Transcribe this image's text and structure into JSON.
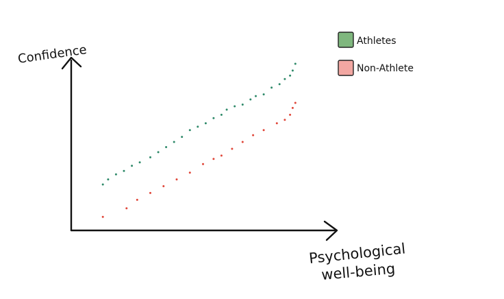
{
  "chart_data": {
    "type": "scatter",
    "title": "",
    "xlabel": [
      "Psychological",
      "well-being"
    ],
    "ylabel": "Confidence",
    "grid": false,
    "legend_position": "top-right",
    "axis_ticks": "none",
    "xlim": [
      0,
      100
    ],
    "ylim": [
      0,
      100
    ],
    "series": [
      {
        "name": "Athletes",
        "color": "#7fb77e",
        "x": [
          12,
          14,
          17,
          20,
          23,
          26,
          30,
          33,
          36,
          39,
          42,
          45,
          48,
          51,
          54,
          57,
          59,
          62,
          65,
          68,
          70,
          73,
          76,
          79,
          81,
          83,
          84,
          85
        ],
        "y": [
          27,
          30,
          33,
          35,
          38,
          40,
          43,
          46,
          49,
          52,
          55,
          59,
          61,
          63,
          66,
          68,
          71,
          73,
          74,
          77,
          79,
          80,
          84,
          86,
          89,
          91,
          94,
          98
        ]
      },
      {
        "name": "Non-Athlete",
        "color": "#f2a7a2",
        "x": [
          12,
          21,
          25,
          30,
          35,
          40,
          45,
          50,
          54,
          57,
          61,
          65,
          69,
          73,
          78,
          81,
          83,
          84,
          85
        ],
        "y": [
          8,
          13,
          18,
          22,
          26,
          30,
          34,
          39,
          42,
          44,
          48,
          52,
          56,
          59,
          63,
          65,
          68,
          72,
          75
        ]
      }
    ]
  }
}
